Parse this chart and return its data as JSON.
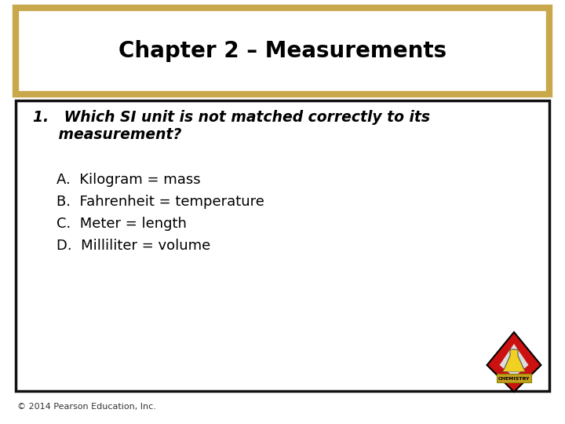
{
  "title": "Chapter 2 – Measurements",
  "question_line1": "1.   Which SI unit is not matched correctly to its",
  "question_line2": "     measurement?",
  "answers": [
    "A.  Kilogram = mass",
    "B.  Fahrenheit = temperature",
    "C.  Meter = length",
    "D.  Milliliter = volume"
  ],
  "footer": "© 2014 Pearson Education, Inc.",
  "bg_color": "#ffffff",
  "title_box_border_color": "#c8a84b",
  "content_box_border_color": "#111111",
  "title_color": "#000000",
  "question_color": "#000000",
  "answer_color": "#000000",
  "footer_color": "#333333",
  "title_fontsize": 20,
  "question_fontsize": 13.5,
  "answer_fontsize": 13,
  "footer_fontsize": 8
}
